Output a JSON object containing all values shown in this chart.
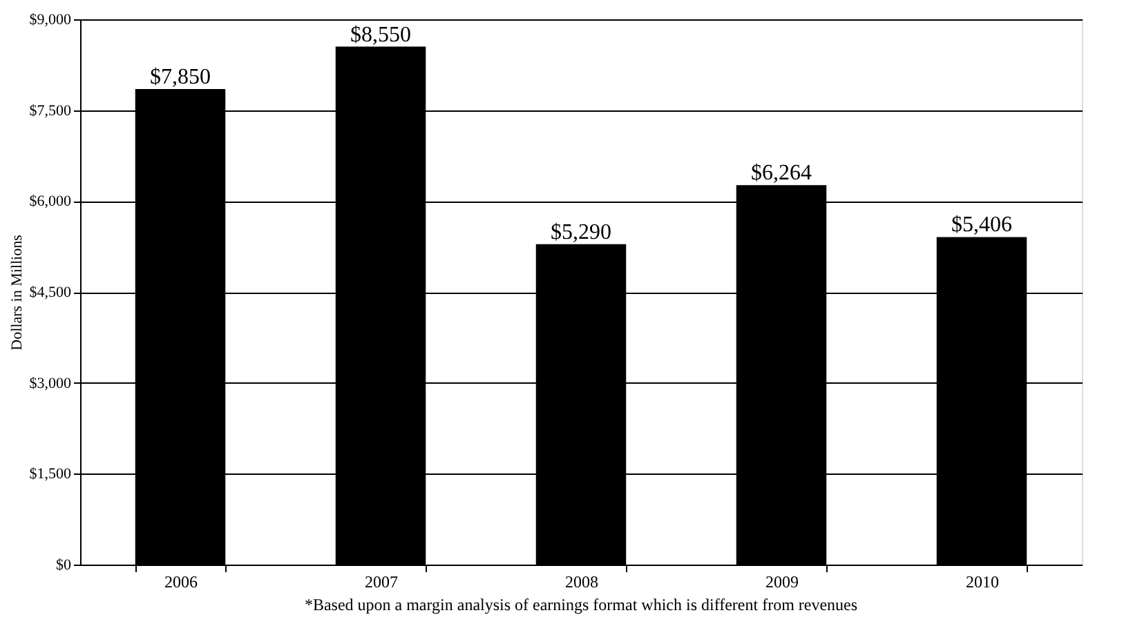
{
  "chart_data": {
    "type": "bar",
    "ylabel": "Dollars in Millions",
    "categories": [
      "2006",
      "2007",
      "2008",
      "2009",
      "2010"
    ],
    "values": [
      7850,
      8550,
      5290,
      6264,
      5406
    ],
    "value_labels": [
      "$7,850",
      "$8,550",
      "$5,290",
      "$6,264",
      "$5,406"
    ],
    "color": "#000000",
    "ylim": [
      0,
      9000
    ],
    "yticks": [
      {
        "value": 0,
        "label": "$0"
      },
      {
        "value": 1500,
        "label": "$1,500"
      },
      {
        "value": 3000,
        "label": "$3,000"
      },
      {
        "value": 4500,
        "label": "$4,500"
      },
      {
        "value": 6000,
        "label": "$6,000"
      },
      {
        "value": 7500,
        "label": "$7,500"
      },
      {
        "value": 9000,
        "label": "$9,000"
      }
    ],
    "grid": "y",
    "annotations": [
      "*Based upon a margin analysis of earnings format which is different from revenues"
    ]
  }
}
